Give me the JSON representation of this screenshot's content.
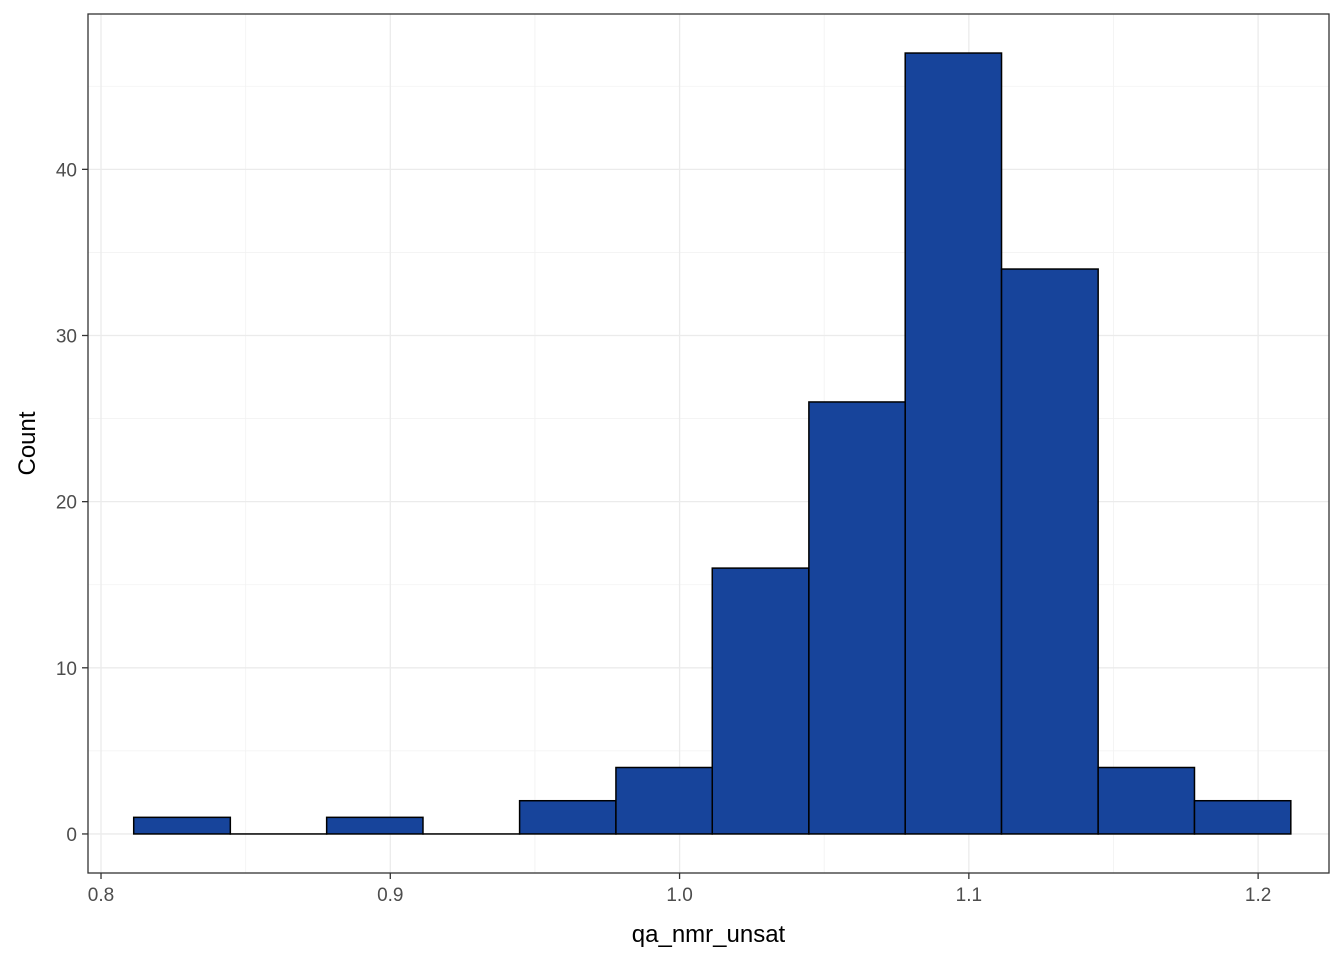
{
  "chart_data": {
    "type": "bar",
    "title": "",
    "xlabel": "qa_nmr_unsat",
    "ylabel": "Count",
    "xlim": [
      0.7955,
      1.2245
    ],
    "ylim": [
      -2.35,
      49.35
    ],
    "xticks": [
      0.8,
      0.9,
      1.0,
      1.1,
      1.2
    ],
    "xtick_labels": [
      "0.8",
      "0.9",
      "1.0",
      "1.1",
      "1.2"
    ],
    "yticks": [
      0,
      10,
      20,
      30,
      40
    ],
    "ytick_labels": [
      "0",
      "10",
      "20",
      "30",
      "40"
    ],
    "grid": true,
    "legend": "none",
    "bar_color": "#17449b",
    "bins": [
      {
        "x0": 0.8113,
        "x1": 0.8447,
        "count": 1
      },
      {
        "x0": 0.8447,
        "x1": 0.878,
        "count": 0
      },
      {
        "x0": 0.878,
        "x1": 0.9113,
        "count": 1
      },
      {
        "x0": 0.9113,
        "x1": 0.9447,
        "count": 0
      },
      {
        "x0": 0.9447,
        "x1": 0.978,
        "count": 2
      },
      {
        "x0": 0.978,
        "x1": 1.0113,
        "count": 4
      },
      {
        "x0": 1.0113,
        "x1": 1.0447,
        "count": 16
      },
      {
        "x0": 1.0447,
        "x1": 1.078,
        "count": 26
      },
      {
        "x0": 1.078,
        "x1": 1.1113,
        "count": 47
      },
      {
        "x0": 1.1113,
        "x1": 1.1447,
        "count": 34
      },
      {
        "x0": 1.1447,
        "x1": 1.178,
        "count": 4
      },
      {
        "x0": 1.178,
        "x1": 1.2113,
        "count": 2
      }
    ]
  }
}
